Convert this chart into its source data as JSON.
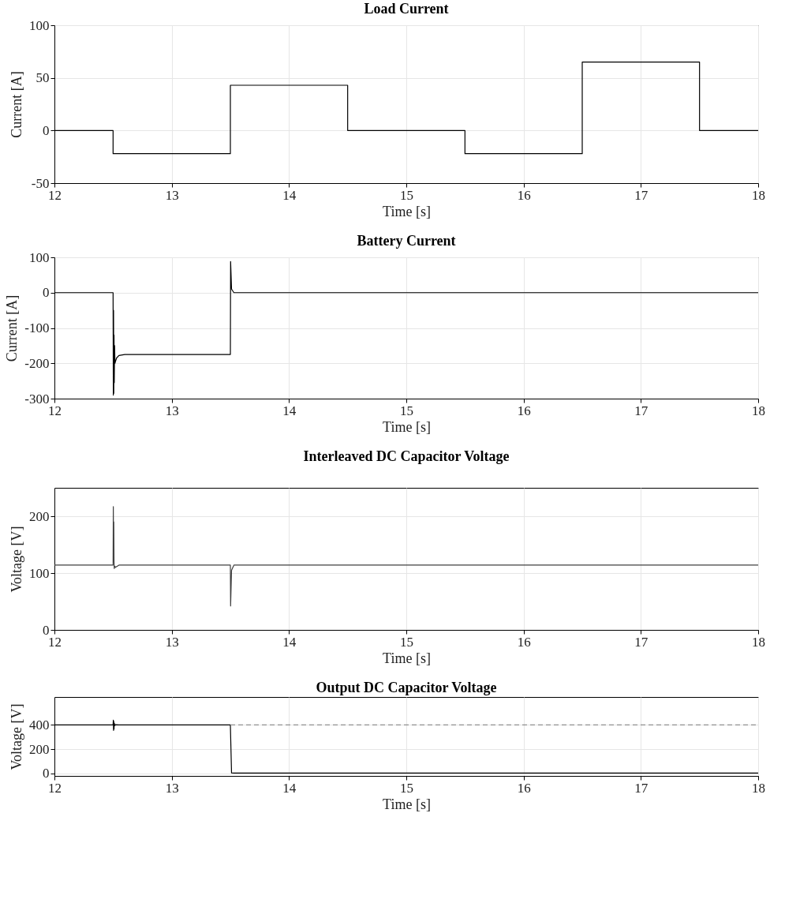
{
  "chart_data": [
    {
      "type": "line",
      "title": "Load Current",
      "xlabel": "Time [s]",
      "ylabel": "Current [A]",
      "xlim": [
        12,
        18
      ],
      "xticks": [
        12,
        13,
        14,
        15,
        16,
        17,
        18
      ],
      "ylim": [
        -50,
        100
      ],
      "yticks": [
        -50,
        0,
        50,
        100
      ],
      "grid": true,
      "series": [
        {
          "color": "#000000",
          "x": [
            12,
            12.5,
            12.5,
            13.5,
            13.5,
            14.5,
            14.5,
            15.5,
            15.5,
            16.5,
            16.5,
            17.5,
            17.5,
            18
          ],
          "values": [
            0,
            0,
            -22,
            -22,
            43,
            43,
            0,
            0,
            -22,
            -22,
            65,
            65,
            0,
            0
          ]
        }
      ]
    },
    {
      "type": "line",
      "title": "Battery Current",
      "xlabel": "Time [s]",
      "ylabel": "Current [A]",
      "xlim": [
        12,
        18
      ],
      "xticks": [
        12,
        13,
        14,
        15,
        16,
        17,
        18
      ],
      "ylim": [
        -300,
        100
      ],
      "yticks": [
        -300,
        -200,
        -100,
        0,
        100
      ],
      "grid": true,
      "series": [
        {
          "color": "#000000",
          "x": [
            12,
            12.5,
            12.502,
            12.504,
            12.506,
            12.508,
            12.51,
            12.513,
            12.516,
            12.52,
            12.53,
            12.55,
            12.6,
            13.5,
            13.502,
            13.51,
            13.53,
            18
          ],
          "values": [
            0,
            0,
            -290,
            -50,
            -285,
            -120,
            -255,
            -150,
            -200,
            -195,
            -185,
            -178,
            -175,
            -175,
            88,
            10,
            0,
            0
          ]
        }
      ]
    },
    {
      "type": "line",
      "title": "Interleaved DC Capacitor Voltage",
      "xlabel": "Time [s]",
      "ylabel": "Voltage [V]",
      "xlim": [
        12,
        18
      ],
      "xticks": [
        12,
        13,
        14,
        15,
        16,
        17,
        18
      ],
      "ylim": [
        0,
        250
      ],
      "yticks": [
        0,
        100,
        200
      ],
      "grid": true,
      "series": [
        {
          "color": "#404040",
          "x": [
            12,
            12.5,
            12.502,
            12.504,
            12.506,
            12.508,
            12.51,
            12.515,
            12.52,
            12.55,
            13.5,
            13.502,
            13.51,
            13.53,
            18
          ],
          "values": [
            114,
            114,
            217,
            130,
            190,
            120,
            108,
            112,
            110,
            114,
            114,
            42,
            105,
            114,
            114
          ]
        }
      ]
    },
    {
      "type": "line",
      "title": "Output DC Capacitor Voltage",
      "xlabel": "Time [s]",
      "ylabel": "Voltage [V]",
      "xlim": [
        12,
        18
      ],
      "xticks": [
        12,
        13,
        14,
        15,
        16,
        17,
        18
      ],
      "ylim": [
        -20,
        630
      ],
      "yticks": [
        0,
        200,
        400
      ],
      "grid": true,
      "series": [
        {
          "color": "#000000",
          "x": [
            12,
            12.5,
            12.502,
            12.504,
            12.506,
            12.508,
            12.51,
            12.515,
            12.52,
            12.55,
            13.5,
            13.51,
            13.53,
            18
          ],
          "values": [
            400,
            400,
            440,
            355,
            430,
            365,
            415,
            395,
            402,
            400,
            400,
            5,
            3,
            3
          ]
        },
        {
          "color": "#909090",
          "line_style": "dashed",
          "x": [
            13.5,
            18
          ],
          "values": [
            400,
            400
          ]
        }
      ]
    }
  ]
}
